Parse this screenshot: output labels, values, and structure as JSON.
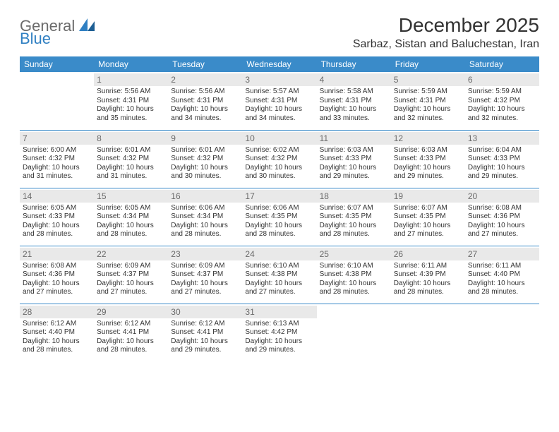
{
  "logo": {
    "text1": "General",
    "text2": "Blue"
  },
  "title": "December 2025",
  "subtitle": "Sarbaz, Sistan and Baluchestan, Iran",
  "header_bg": "#3a8bc9",
  "rule_color": "#3a8bc9",
  "daynum_bg": "#e9e9e9",
  "weekdays": [
    "Sunday",
    "Monday",
    "Tuesday",
    "Wednesday",
    "Thursday",
    "Friday",
    "Saturday"
  ],
  "weeks": [
    [
      null,
      {
        "n": "1",
        "sr": "Sunrise: 5:56 AM",
        "ss": "Sunset: 4:31 PM",
        "d1": "Daylight: 10 hours",
        "d2": "and 35 minutes."
      },
      {
        "n": "2",
        "sr": "Sunrise: 5:56 AM",
        "ss": "Sunset: 4:31 PM",
        "d1": "Daylight: 10 hours",
        "d2": "and 34 minutes."
      },
      {
        "n": "3",
        "sr": "Sunrise: 5:57 AM",
        "ss": "Sunset: 4:31 PM",
        "d1": "Daylight: 10 hours",
        "d2": "and 34 minutes."
      },
      {
        "n": "4",
        "sr": "Sunrise: 5:58 AM",
        "ss": "Sunset: 4:31 PM",
        "d1": "Daylight: 10 hours",
        "d2": "and 33 minutes."
      },
      {
        "n": "5",
        "sr": "Sunrise: 5:59 AM",
        "ss": "Sunset: 4:31 PM",
        "d1": "Daylight: 10 hours",
        "d2": "and 32 minutes."
      },
      {
        "n": "6",
        "sr": "Sunrise: 5:59 AM",
        "ss": "Sunset: 4:32 PM",
        "d1": "Daylight: 10 hours",
        "d2": "and 32 minutes."
      }
    ],
    [
      {
        "n": "7",
        "sr": "Sunrise: 6:00 AM",
        "ss": "Sunset: 4:32 PM",
        "d1": "Daylight: 10 hours",
        "d2": "and 31 minutes."
      },
      {
        "n": "8",
        "sr": "Sunrise: 6:01 AM",
        "ss": "Sunset: 4:32 PM",
        "d1": "Daylight: 10 hours",
        "d2": "and 31 minutes."
      },
      {
        "n": "9",
        "sr": "Sunrise: 6:01 AM",
        "ss": "Sunset: 4:32 PM",
        "d1": "Daylight: 10 hours",
        "d2": "and 30 minutes."
      },
      {
        "n": "10",
        "sr": "Sunrise: 6:02 AM",
        "ss": "Sunset: 4:32 PM",
        "d1": "Daylight: 10 hours",
        "d2": "and 30 minutes."
      },
      {
        "n": "11",
        "sr": "Sunrise: 6:03 AM",
        "ss": "Sunset: 4:33 PM",
        "d1": "Daylight: 10 hours",
        "d2": "and 29 minutes."
      },
      {
        "n": "12",
        "sr": "Sunrise: 6:03 AM",
        "ss": "Sunset: 4:33 PM",
        "d1": "Daylight: 10 hours",
        "d2": "and 29 minutes."
      },
      {
        "n": "13",
        "sr": "Sunrise: 6:04 AM",
        "ss": "Sunset: 4:33 PM",
        "d1": "Daylight: 10 hours",
        "d2": "and 29 minutes."
      }
    ],
    [
      {
        "n": "14",
        "sr": "Sunrise: 6:05 AM",
        "ss": "Sunset: 4:33 PM",
        "d1": "Daylight: 10 hours",
        "d2": "and 28 minutes."
      },
      {
        "n": "15",
        "sr": "Sunrise: 6:05 AM",
        "ss": "Sunset: 4:34 PM",
        "d1": "Daylight: 10 hours",
        "d2": "and 28 minutes."
      },
      {
        "n": "16",
        "sr": "Sunrise: 6:06 AM",
        "ss": "Sunset: 4:34 PM",
        "d1": "Daylight: 10 hours",
        "d2": "and 28 minutes."
      },
      {
        "n": "17",
        "sr": "Sunrise: 6:06 AM",
        "ss": "Sunset: 4:35 PM",
        "d1": "Daylight: 10 hours",
        "d2": "and 28 minutes."
      },
      {
        "n": "18",
        "sr": "Sunrise: 6:07 AM",
        "ss": "Sunset: 4:35 PM",
        "d1": "Daylight: 10 hours",
        "d2": "and 28 minutes."
      },
      {
        "n": "19",
        "sr": "Sunrise: 6:07 AM",
        "ss": "Sunset: 4:35 PM",
        "d1": "Daylight: 10 hours",
        "d2": "and 27 minutes."
      },
      {
        "n": "20",
        "sr": "Sunrise: 6:08 AM",
        "ss": "Sunset: 4:36 PM",
        "d1": "Daylight: 10 hours",
        "d2": "and 27 minutes."
      }
    ],
    [
      {
        "n": "21",
        "sr": "Sunrise: 6:08 AM",
        "ss": "Sunset: 4:36 PM",
        "d1": "Daylight: 10 hours",
        "d2": "and 27 minutes."
      },
      {
        "n": "22",
        "sr": "Sunrise: 6:09 AM",
        "ss": "Sunset: 4:37 PM",
        "d1": "Daylight: 10 hours",
        "d2": "and 27 minutes."
      },
      {
        "n": "23",
        "sr": "Sunrise: 6:09 AM",
        "ss": "Sunset: 4:37 PM",
        "d1": "Daylight: 10 hours",
        "d2": "and 27 minutes."
      },
      {
        "n": "24",
        "sr": "Sunrise: 6:10 AM",
        "ss": "Sunset: 4:38 PM",
        "d1": "Daylight: 10 hours",
        "d2": "and 27 minutes."
      },
      {
        "n": "25",
        "sr": "Sunrise: 6:10 AM",
        "ss": "Sunset: 4:38 PM",
        "d1": "Daylight: 10 hours",
        "d2": "and 28 minutes."
      },
      {
        "n": "26",
        "sr": "Sunrise: 6:11 AM",
        "ss": "Sunset: 4:39 PM",
        "d1": "Daylight: 10 hours",
        "d2": "and 28 minutes."
      },
      {
        "n": "27",
        "sr": "Sunrise: 6:11 AM",
        "ss": "Sunset: 4:40 PM",
        "d1": "Daylight: 10 hours",
        "d2": "and 28 minutes."
      }
    ],
    [
      {
        "n": "28",
        "sr": "Sunrise: 6:12 AM",
        "ss": "Sunset: 4:40 PM",
        "d1": "Daylight: 10 hours",
        "d2": "and 28 minutes."
      },
      {
        "n": "29",
        "sr": "Sunrise: 6:12 AM",
        "ss": "Sunset: 4:41 PM",
        "d1": "Daylight: 10 hours",
        "d2": "and 28 minutes."
      },
      {
        "n": "30",
        "sr": "Sunrise: 6:12 AM",
        "ss": "Sunset: 4:41 PM",
        "d1": "Daylight: 10 hours",
        "d2": "and 29 minutes."
      },
      {
        "n": "31",
        "sr": "Sunrise: 6:13 AM",
        "ss": "Sunset: 4:42 PM",
        "d1": "Daylight: 10 hours",
        "d2": "and 29 minutes."
      },
      null,
      null,
      null
    ]
  ]
}
